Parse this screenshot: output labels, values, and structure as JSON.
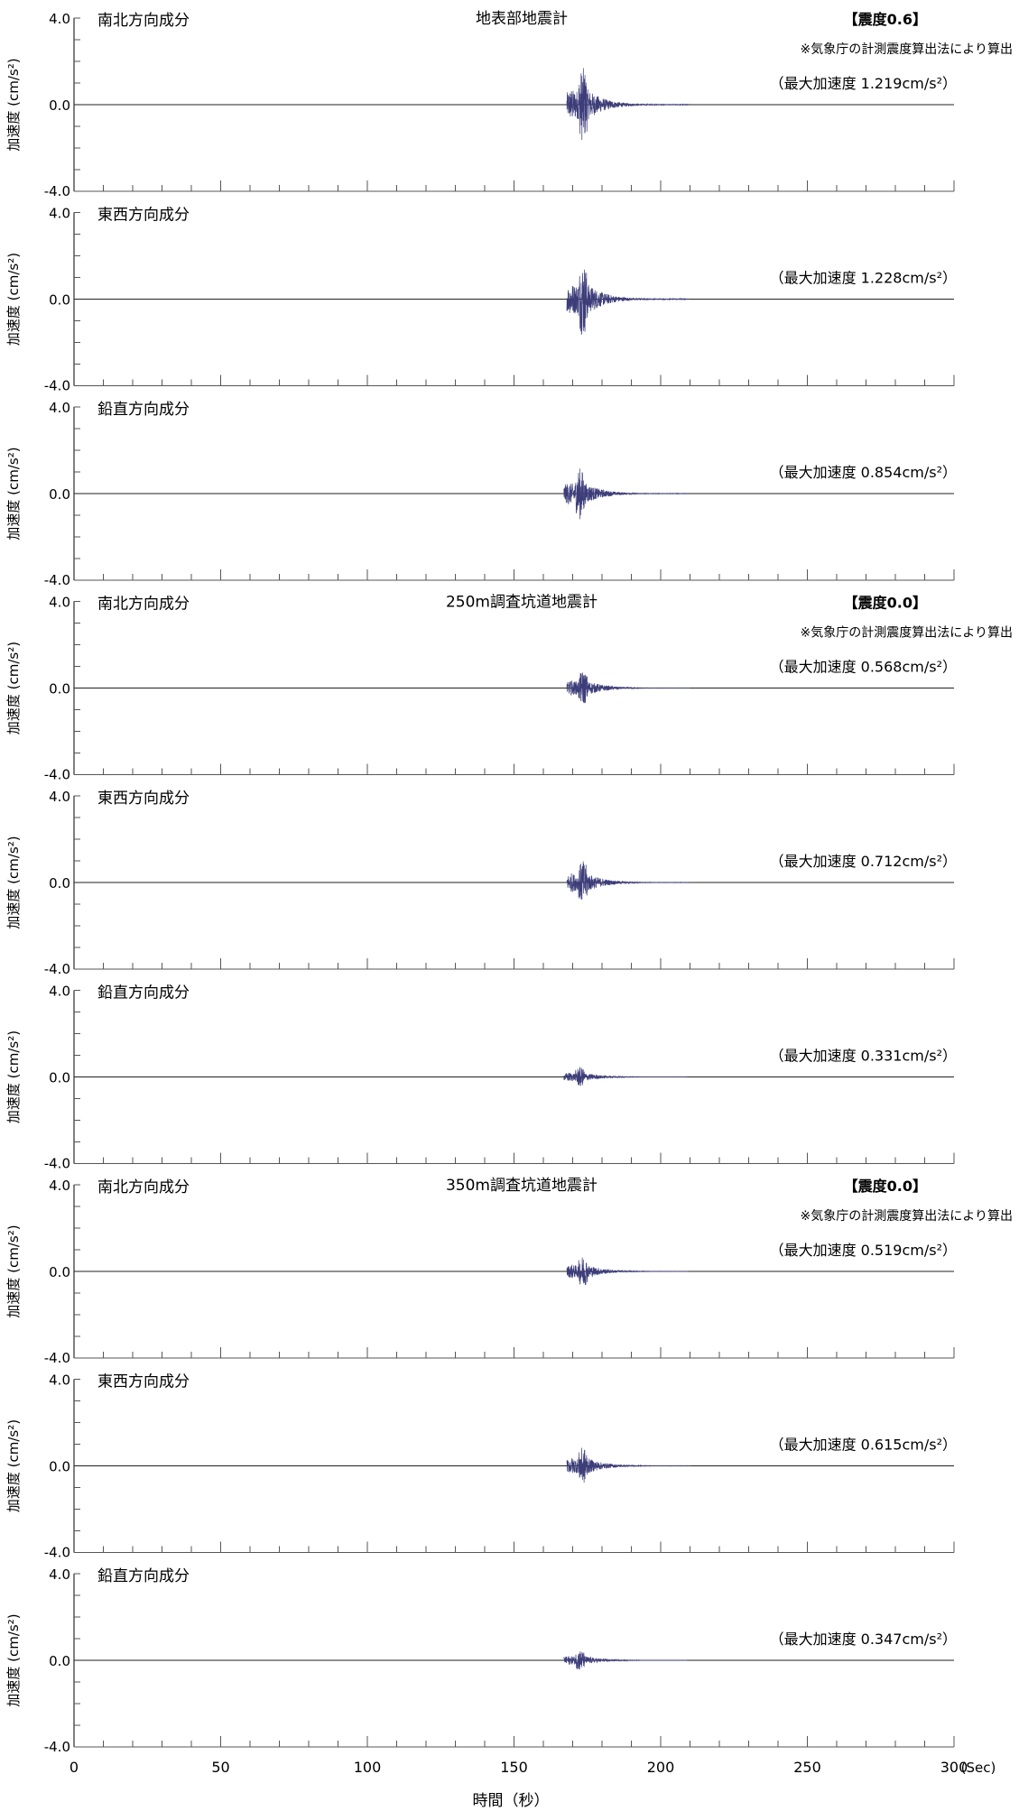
{
  "chart_data": {
    "type": "line",
    "xlabel": "時間（秒）",
    "x_unit": "(Sec)",
    "ylabel": "加速度 (cm/s²)",
    "xlim": [
      0,
      300
    ],
    "ylim": [
      -4.0,
      4.0
    ],
    "x_ticks": [
      "0",
      "50",
      "100",
      "150",
      "200",
      "250",
      "300"
    ],
    "y_tick_labels": {
      "top": "4.0",
      "mid": "0.0",
      "bottom": "-4.0"
    },
    "wave_color": "#3d3d7a",
    "panels": [
      {
        "component": "南北方向成分",
        "title": "地表部地震計",
        "intensity": "【震度0.6】",
        "intensity_note": "※気象庁の計測震度算出法により算出",
        "peak_text": "（最大加速度 1.219cm/s²）",
        "peak": 1.219,
        "onset": 168
      },
      {
        "component": "東西方向成分",
        "title": "",
        "intensity": "",
        "intensity_note": "",
        "peak_text": "（最大加速度 1.228cm/s²）",
        "peak": 1.228,
        "onset": 168
      },
      {
        "component": "鉛直方向成分",
        "title": "",
        "intensity": "",
        "intensity_note": "",
        "peak_text": "（最大加速度 0.854cm/s²）",
        "peak": 0.854,
        "onset": 167
      },
      {
        "component": "南北方向成分",
        "title": "250m調査坑道地震計",
        "intensity": "【震度0.0】",
        "intensity_note": "※気象庁の計測震度算出法により算出",
        "peak_text": "（最大加速度 0.568cm/s²）",
        "peak": 0.568,
        "onset": 168
      },
      {
        "component": "東西方向成分",
        "title": "",
        "intensity": "",
        "intensity_note": "",
        "peak_text": "（最大加速度 0.712cm/s²）",
        "peak": 0.712,
        "onset": 168
      },
      {
        "component": "鉛直方向成分",
        "title": "",
        "intensity": "",
        "intensity_note": "",
        "peak_text": "（最大加速度 0.331cm/s²）",
        "peak": 0.331,
        "onset": 167
      },
      {
        "component": "南北方向成分",
        "title": "350m調査坑道地震計",
        "intensity": "【震度0.0】",
        "intensity_note": "※気象庁の計測震度算出法により算出",
        "peak_text": "（最大加速度 0.519cm/s²）",
        "peak": 0.519,
        "onset": 168
      },
      {
        "component": "東西方向成分",
        "title": "",
        "intensity": "",
        "intensity_note": "",
        "peak_text": "（最大加速度 0.615cm/s²）",
        "peak": 0.615,
        "onset": 168
      },
      {
        "component": "鉛直方向成分",
        "title": "",
        "intensity": "",
        "intensity_note": "",
        "peak_text": "（最大加速度 0.347cm/s²）",
        "peak": 0.347,
        "onset": 167
      }
    ]
  }
}
